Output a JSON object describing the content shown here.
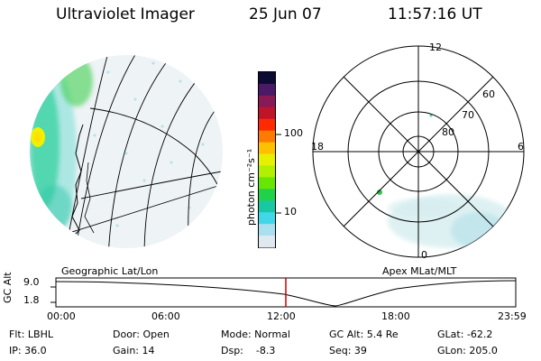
{
  "header": {
    "title": "Ultraviolet Imager",
    "date": "25 Jun 07",
    "time": "11:57:16 UT"
  },
  "colorbar": {
    "unit_label": "photon cm⁻²s⁻¹",
    "ticks": [
      "100",
      "10"
    ],
    "colors": [
      "#0b0b33",
      "#4a1a66",
      "#8a1a55",
      "#c0142a",
      "#ff2a00",
      "#ff7a00",
      "#ffc000",
      "#e6f000",
      "#b0f000",
      "#66e600",
      "#20d24a",
      "#18c8a0",
      "#40d8e8",
      "#a8e0f0",
      "#e0e8f0"
    ]
  },
  "left_panel": {
    "label": "Geographic Lat/Lon"
  },
  "right_panel": {
    "label": "Apex MLat/MLT",
    "mlt_labels": {
      "top": "12",
      "left": "18",
      "right": "6",
      "bottom": "0"
    },
    "lat_labels": [
      "60",
      "70",
      "80"
    ]
  },
  "altitude_plot": {
    "ylabel": "GC Alt",
    "y_ticks": [
      "9.0",
      "1.8"
    ],
    "x_ticks": [
      "00:00",
      "06:00",
      "12:00",
      "18:00",
      "23:59"
    ],
    "current_time_fraction": 0.5
  },
  "info": {
    "row1": {
      "flt": "Flt: LBHL",
      "door": "Door: Open",
      "mode": "Mode: Normal",
      "gcalt": "GC Alt: 5.4 Re",
      "glat": "GLat: -62.2"
    },
    "row2": {
      "ip": "IP: 36.0",
      "gain": "Gain: 14",
      "dsp": "Dsp:    -8.3",
      "seq": "Seq: 39",
      "glon": "GLon: 205.0"
    }
  }
}
